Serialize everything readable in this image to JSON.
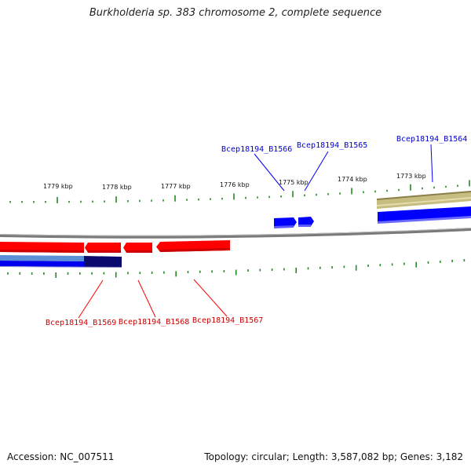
{
  "title": "Burkholderia sp. 383 chromosome 2, complete sequence",
  "footer": {
    "accession": "Accession: NC_007511",
    "summary": "Topology: circular; Length: 3,587,082 bp; Genes: 3,182"
  },
  "colors": {
    "forward_gene": "#0000ff",
    "reverse_gene": "#ff0000",
    "forward_label": "#0000cc",
    "reverse_label": "#cc0000",
    "tick": "#228b22",
    "backbone": "#808080",
    "band_tan": "#c8bd80",
    "band_navy": "#0a0a6e"
  },
  "ticks": [
    {
      "label": "1779 kbp"
    },
    {
      "label": "1778 kbp"
    },
    {
      "label": "1777 kbp"
    },
    {
      "label": "1776 kbp"
    },
    {
      "label": "1775 kbp"
    },
    {
      "label": "1774 kbp"
    },
    {
      "label": "1773 kbp"
    }
  ],
  "genes_forward": [
    {
      "label": "Bcep18194_B1566"
    },
    {
      "label": "Bcep18194_B1565"
    },
    {
      "label": "Bcep18194_B1564"
    }
  ],
  "genes_reverse": [
    {
      "label": "Bcep18194_B1569"
    },
    {
      "label": "Bcep18194_B1568"
    },
    {
      "label": "Bcep18194_B1567"
    }
  ]
}
